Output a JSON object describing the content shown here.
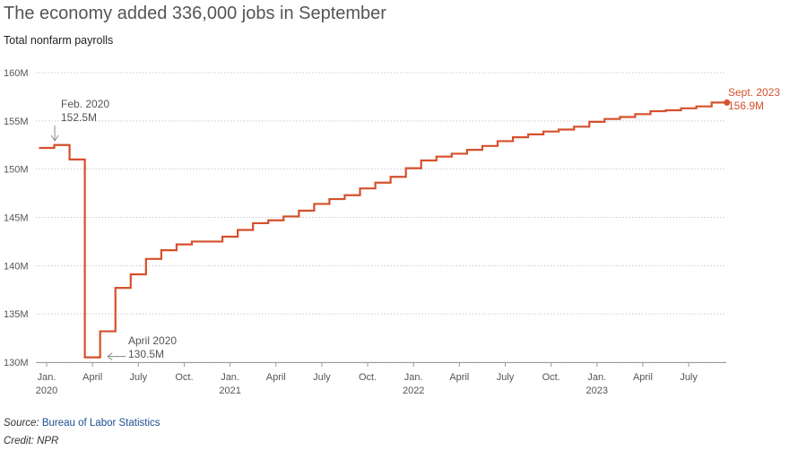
{
  "title": "The economy added 336,000 jobs in September",
  "subtitle": "Total nonfarm payrolls",
  "source_label": "Source:",
  "source_value": "Bureau of Labor Statistics",
  "credit": "Credit: NPR",
  "colors": {
    "line": "#d5502c",
    "grid": "#cccccc",
    "text": "#555555",
    "annotation": "#888888"
  },
  "chart_data": {
    "type": "line",
    "step": true,
    "xlabel": "",
    "ylabel": "",
    "ylim": [
      129,
      161
    ],
    "yticks": [
      130,
      135,
      140,
      145,
      150,
      155,
      160
    ],
    "ytick_labels": [
      "130M",
      "135M",
      "140M",
      "145M",
      "150M",
      "155M",
      "160M"
    ],
    "xticks": [
      {
        "month": "2020-01",
        "label": "Jan.",
        "sublabel": "2020"
      },
      {
        "month": "2020-04",
        "label": "April",
        "sublabel": ""
      },
      {
        "month": "2020-07",
        "label": "July",
        "sublabel": ""
      },
      {
        "month": "2020-10",
        "label": "Oct.",
        "sublabel": ""
      },
      {
        "month": "2021-01",
        "label": "Jan.",
        "sublabel": "2021"
      },
      {
        "month": "2021-04",
        "label": "April",
        "sublabel": ""
      },
      {
        "month": "2021-07",
        "label": "July",
        "sublabel": ""
      },
      {
        "month": "2021-10",
        "label": "Oct.",
        "sublabel": ""
      },
      {
        "month": "2022-01",
        "label": "Jan.",
        "sublabel": "2022"
      },
      {
        "month": "2022-04",
        "label": "April",
        "sublabel": ""
      },
      {
        "month": "2022-07",
        "label": "July",
        "sublabel": ""
      },
      {
        "month": "2022-10",
        "label": "Oct.",
        "sublabel": ""
      },
      {
        "month": "2023-01",
        "label": "Jan.",
        "sublabel": "2023"
      },
      {
        "month": "2023-04",
        "label": "April",
        "sublabel": ""
      },
      {
        "month": "2023-07",
        "label": "July",
        "sublabel": ""
      }
    ],
    "series": [
      {
        "x": [
          "2020-01",
          "2020-02",
          "2020-03",
          "2020-04",
          "2020-05",
          "2020-06",
          "2020-07",
          "2020-08",
          "2020-09",
          "2020-10",
          "2020-11",
          "2020-12",
          "2021-01",
          "2021-02",
          "2021-03",
          "2021-04",
          "2021-05",
          "2021-06",
          "2021-07",
          "2021-08",
          "2021-09",
          "2021-10",
          "2021-11",
          "2021-12",
          "2022-01",
          "2022-02",
          "2022-03",
          "2022-04",
          "2022-05",
          "2022-06",
          "2022-07",
          "2022-08",
          "2022-09",
          "2022-10",
          "2022-11",
          "2022-12",
          "2023-01",
          "2023-02",
          "2023-03",
          "2023-04",
          "2023-05",
          "2023-06",
          "2023-07",
          "2023-08",
          "2023-09"
        ],
        "y": [
          152.2,
          152.5,
          151.0,
          130.5,
          133.2,
          137.7,
          139.1,
          140.7,
          141.6,
          142.2,
          142.5,
          142.5,
          143.0,
          143.7,
          144.4,
          144.7,
          145.1,
          145.7,
          146.4,
          146.9,
          147.3,
          148.0,
          148.6,
          149.2,
          150.1,
          150.9,
          151.3,
          151.6,
          152.0,
          152.4,
          152.9,
          153.3,
          153.6,
          153.9,
          154.1,
          154.4,
          154.9,
          155.2,
          155.4,
          155.7,
          156.0,
          156.1,
          156.3,
          156.5,
          156.9
        ]
      }
    ],
    "annotations": [
      {
        "label": "Feb. 2020",
        "value": "152.5M",
        "month": "2020-02"
      },
      {
        "label": "April 2020",
        "value": "130.5M",
        "month": "2020-04"
      },
      {
        "label": "Sept. 2023",
        "value": "156.9M",
        "month": "2023-09"
      }
    ]
  }
}
